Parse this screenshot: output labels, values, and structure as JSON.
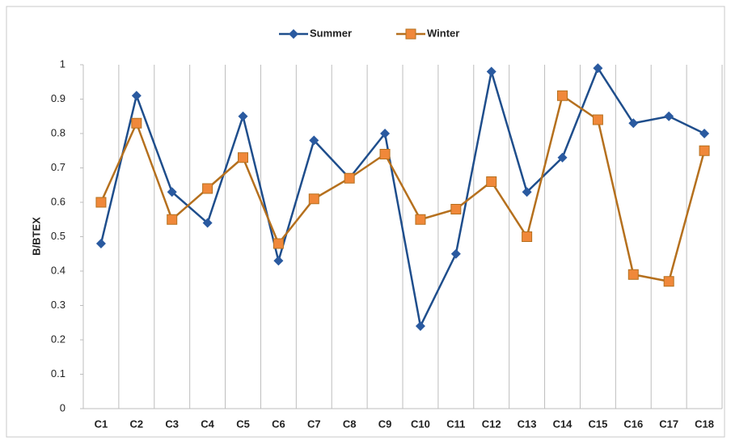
{
  "chart_data": {
    "type": "line",
    "y_label": "B/BTEX",
    "categories": [
      "C1",
      "C2",
      "C3",
      "C4",
      "C5",
      "C6",
      "C7",
      "C8",
      "C9",
      "C10",
      "C11",
      "C12",
      "C13",
      "C14",
      "C15",
      "C16",
      "C17",
      "C18"
    ],
    "series": [
      {
        "name": "Summer",
        "color": "#1f4e8c",
        "marker": "diamond",
        "marker_color": "#2a5aa0",
        "values": [
          0.48,
          0.91,
          0.63,
          0.54,
          0.85,
          0.43,
          0.78,
          0.67,
          0.8,
          0.24,
          0.45,
          0.98,
          0.63,
          0.73,
          0.99,
          0.83,
          0.85,
          0.8
        ]
      },
      {
        "name": "Winter",
        "color": "#b5701e",
        "marker": "square",
        "marker_color": "#f0883a",
        "values": [
          0.6,
          0.83,
          0.55,
          0.64,
          0.73,
          0.48,
          0.61,
          0.67,
          0.74,
          0.55,
          0.58,
          0.66,
          0.5,
          0.91,
          0.84,
          0.39,
          0.37,
          0.75
        ]
      }
    ],
    "ylim": [
      0,
      1
    ],
    "yticks": [
      0,
      0.1,
      0.2,
      0.3,
      0.4,
      0.5,
      0.6,
      0.7,
      0.8,
      0.9,
      1
    ],
    "category_grid": true,
    "legend": "top"
  }
}
